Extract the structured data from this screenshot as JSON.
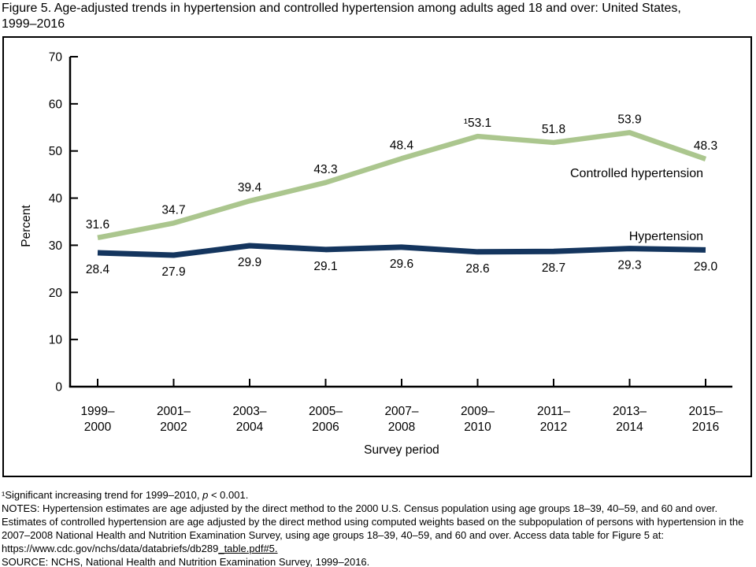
{
  "page": {
    "title_line1": "Figure 5. Age-adjusted trends in hypertension and controlled hypertension among adults aged 18 and over: United States,",
    "title_line2": "1999–2016"
  },
  "chart_data": {
    "type": "line",
    "title": "Figure 5. Age-adjusted trends in hypertension and controlled hypertension among adults aged 18 and over: United States, 1999–2016",
    "categories": [
      "1999–2000",
      "2001–2002",
      "2003–2004",
      "2005–2006",
      "2007–2008",
      "2009–2010",
      "2011–2012",
      "2013–2014",
      "2015–2016"
    ],
    "series": [
      {
        "name": "Controlled hypertension",
        "color": "#abc68e",
        "values": [
          31.6,
          34.7,
          39.4,
          43.3,
          48.4,
          53.1,
          51.8,
          53.9,
          48.3
        ],
        "labels": [
          "31.6",
          "34.7",
          "39.4",
          "43.3",
          "48.4",
          "¹53.1",
          "51.8",
          "53.9",
          "48.3"
        ],
        "label_position": "above"
      },
      {
        "name": "Hypertension",
        "color": "#14355e",
        "values": [
          28.4,
          27.9,
          29.9,
          29.1,
          29.6,
          28.6,
          28.7,
          29.3,
          29.0
        ],
        "labels": [
          "28.4",
          "27.9",
          "29.9",
          "29.1",
          "29.6",
          "28.6",
          "28.7",
          "29.3",
          "29.0"
        ],
        "label_position": "below"
      }
    ],
    "xlabel": "Survey period",
    "ylabel": "Percent",
    "ylim": [
      0,
      70
    ],
    "yticks": [
      0,
      10,
      20,
      30,
      40,
      50,
      60,
      70
    ],
    "grid": false,
    "legend_position": "inline-right"
  },
  "footnotes": {
    "fn1_pre": "¹Significant increasing trend for 1999–2010, ",
    "fn1_italic": "p",
    "fn1_post": " < 0.001.",
    "notes": "NOTES: Hypertension estimates are age adjusted by the direct method to the 2000 U.S. Census population using age groups 18–39, 40–59, and 60 and over. Estimates of controlled hypertension are age adjusted by the direct method using computed weights based on the subpopulation of persons with hypertension in the 2007–2008 National Health and Nutrition Examination Survey, using age groups 18–39, 40–59, and 60 and over. Access data table for Figure 5 at:",
    "url_main": "https://www.cdc.gov/nchs/data/databriefs/db289",
    "url_tail": "_table.pdf#5.",
    "source": "SOURCE: NCHS, National Health and Nutrition Examination Survey, 1999–2016."
  }
}
